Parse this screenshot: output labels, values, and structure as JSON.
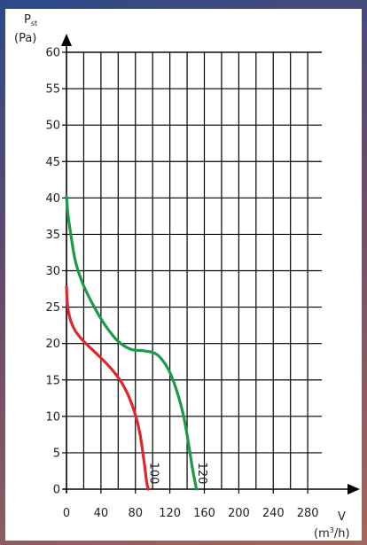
{
  "chart_data": {
    "type": "line",
    "y_label_symbol": "P",
    "y_label_subscript": "st",
    "y_label_unit": "(Pa)",
    "x_label_symbol": "V",
    "x_label_unit_prefix": "(m",
    "x_label_unit_sup": "3",
    "x_label_unit_suffix": "/h)",
    "xlim": [
      0,
      320
    ],
    "ylim": [
      0,
      60
    ],
    "x_ticks": [
      0,
      40,
      80,
      120,
      160,
      200,
      240,
      280
    ],
    "y_ticks": [
      0,
      5,
      10,
      15,
      20,
      25,
      30,
      35,
      40,
      45,
      50,
      55,
      60
    ],
    "grid": true,
    "colors": {
      "series_100": "#e0252b",
      "series_120": "#1a9a4a",
      "grid": "#000000"
    },
    "series": [
      {
        "name": "100",
        "color": "#e0252b",
        "points": [
          [
            0,
            27.8
          ],
          [
            1,
            25.5
          ],
          [
            4,
            23.5
          ],
          [
            10,
            21.8
          ],
          [
            20,
            20.3
          ],
          [
            35,
            18.6
          ],
          [
            50,
            16.8
          ],
          [
            62,
            15.0
          ],
          [
            72,
            12.8
          ],
          [
            80,
            10.2
          ],
          [
            85,
            7.8
          ],
          [
            88,
            5.5
          ],
          [
            91,
            3.0
          ],
          [
            93,
            1.0
          ],
          [
            95,
            0.0
          ]
        ]
      },
      {
        "name": "120",
        "color": "#1a9a4a",
        "points": [
          [
            0,
            40.2
          ],
          [
            2,
            37.5
          ],
          [
            5,
            35.0
          ],
          [
            10,
            31.5
          ],
          [
            18,
            28.5
          ],
          [
            30,
            25.5
          ],
          [
            45,
            22.5
          ],
          [
            60,
            20.3
          ],
          [
            75,
            19.2
          ],
          [
            90,
            19.0
          ],
          [
            105,
            18.5
          ],
          [
            118,
            16.5
          ],
          [
            128,
            13.5
          ],
          [
            136,
            10.0
          ],
          [
            142,
            6.0
          ],
          [
            146,
            3.0
          ],
          [
            150,
            0.5
          ],
          [
            151,
            0.0
          ]
        ]
      }
    ]
  }
}
